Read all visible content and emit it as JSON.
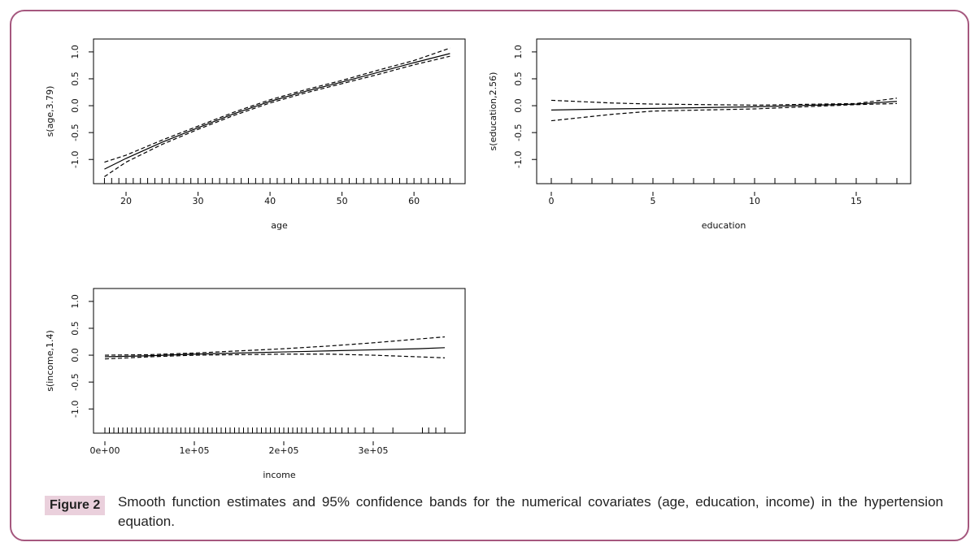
{
  "chart_data": [
    {
      "type": "line",
      "xlabel": "age",
      "ylabel": "s(age,3.79)",
      "x": [
        17,
        20,
        25,
        30,
        35,
        40,
        45,
        50,
        55,
        60,
        65
      ],
      "series": [
        {
          "color": "#000000",
          "style": "solid",
          "values": [
            -1.18,
            -0.98,
            -0.68,
            -0.41,
            -0.15,
            0.08,
            0.27,
            0.44,
            0.62,
            0.8,
            0.97
          ]
        },
        {
          "color": "#000000",
          "style": "dashed",
          "values": [
            -1.05,
            -0.92,
            -0.64,
            -0.38,
            -0.12,
            0.11,
            0.3,
            0.47,
            0.66,
            0.84,
            1.07
          ]
        },
        {
          "color": "#000000",
          "style": "dashed",
          "values": [
            -1.32,
            -1.05,
            -0.72,
            -0.44,
            -0.18,
            0.05,
            0.24,
            0.41,
            0.58,
            0.76,
            0.92
          ]
        }
      ],
      "rug": [
        17,
        18,
        19,
        20,
        21,
        22,
        23,
        24,
        25,
        26,
        27,
        28,
        29,
        30,
        31,
        32,
        33,
        34,
        35,
        36,
        37,
        38,
        39,
        40,
        41,
        42,
        43,
        44,
        45,
        46,
        47,
        48,
        49,
        50,
        51,
        52,
        53,
        54,
        55,
        56,
        57,
        58,
        59,
        60,
        61,
        62,
        63,
        64,
        65
      ],
      "xlim": [
        15.48,
        67.1
      ],
      "ylim": [
        -1.45,
        1.24
      ],
      "xticks": [
        20,
        30,
        40,
        50,
        60
      ],
      "yticks": [
        {
          "value": -1,
          "label": "-1.0"
        },
        {
          "value": -0.5,
          "label": "-0.5"
        },
        {
          "value": 0,
          "label": "0.0"
        },
        0.5,
        {
          "value": 1,
          "label": "1.0"
        }
      ]
    },
    {
      "type": "line",
      "xlabel": "education",
      "ylabel": "s(education,2.56)",
      "x": [
        0,
        3,
        5,
        10,
        15,
        17
      ],
      "series": [
        {
          "color": "#000000",
          "style": "solid",
          "values": [
            -0.08,
            -0.06,
            -0.05,
            -0.02,
            0.03,
            0.08
          ]
        },
        {
          "color": "#000000",
          "style": "dashed",
          "values": [
            0.1,
            0.05,
            0.03,
            0.01,
            0.04,
            0.14
          ]
        },
        {
          "color": "#000000",
          "style": "dashed",
          "values": [
            -0.28,
            -0.16,
            -0.1,
            -0.06,
            0.02,
            0.04
          ]
        }
      ],
      "rug": [
        0,
        1,
        2,
        3,
        4,
        5,
        6,
        7,
        8,
        9,
        10,
        11,
        12,
        13,
        14,
        15,
        16,
        17
      ],
      "xlim": [
        -0.72,
        17.68
      ],
      "ylim": [
        -1.45,
        1.24
      ],
      "xticks": [
        0,
        5,
        10,
        15
      ],
      "yticks": [
        {
          "value": -1,
          "label": "-1.0"
        },
        {
          "value": -0.5,
          "label": "-0.5"
        },
        {
          "value": 0,
          "label": "0.0"
        },
        0.5,
        {
          "value": 1,
          "label": "1.0"
        }
      ]
    },
    {
      "type": "line",
      "xlabel": "income",
      "ylabel": "s(income,1.4)",
      "x": [
        0,
        50000,
        100000,
        150000,
        200000,
        250000,
        300000,
        350000,
        380000
      ],
      "series": [
        {
          "color": "#000000",
          "style": "solid",
          "values": [
            -0.03,
            -0.01,
            0.02,
            0.04,
            0.06,
            0.08,
            0.1,
            0.12,
            0.14
          ]
        },
        {
          "color": "#000000",
          "style": "dashed",
          "values": [
            0.0,
            0.01,
            0.04,
            0.08,
            0.12,
            0.17,
            0.23,
            0.3,
            0.34
          ]
        },
        {
          "color": "#000000",
          "style": "dashed",
          "values": [
            -0.07,
            -0.03,
            0.0,
            0.01,
            0.02,
            0.02,
            0.0,
            -0.03,
            -0.05
          ]
        }
      ],
      "rug": [
        0,
        5000,
        10000,
        15000,
        20000,
        25000,
        30000,
        35000,
        40000,
        45000,
        50000,
        55000,
        60000,
        65000,
        70000,
        75000,
        80000,
        85000,
        90000,
        95000,
        100000,
        105000,
        110000,
        115000,
        120000,
        125000,
        130000,
        135000,
        140000,
        145000,
        150000,
        155000,
        160000,
        165000,
        170000,
        175000,
        180000,
        185000,
        190000,
        195000,
        200000,
        205000,
        210000,
        215000,
        220000,
        225000,
        232000,
        238000,
        245000,
        252000,
        258000,
        265000,
        272000,
        280000,
        290000,
        300000,
        322000,
        355000,
        362000,
        370000,
        380000
      ],
      "xlim": [
        -12727,
        402727
      ],
      "ylim": [
        -1.45,
        1.24
      ],
      "xticks": [
        {
          "value": 0,
          "label": "0e+00"
        },
        {
          "value": 100000,
          "label": "1e+05"
        },
        {
          "value": 200000,
          "label": "2e+05"
        },
        {
          "value": 300000,
          "label": "3e+05"
        }
      ],
      "yticks": [
        {
          "value": -1,
          "label": "-1.0"
        },
        {
          "value": -0.5,
          "label": "-0.5"
        },
        {
          "value": 0,
          "label": "0.0"
        },
        0.5,
        {
          "value": 1,
          "label": "1.0"
        }
      ]
    }
  ],
  "caption": {
    "label": "Figure 2",
    "text": "Smooth function estimates and 95% confidence bands for the numerical covariates (age, education, income) in the hypertension equation."
  }
}
